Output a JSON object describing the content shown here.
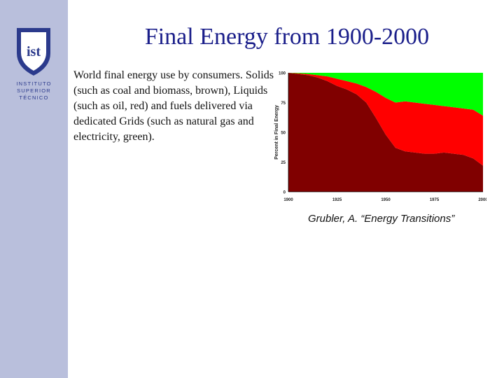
{
  "slide": {
    "title": "Final Energy from 1900-2000",
    "description": "World final energy use by consumers. Solids (such as coal and biomass, brown), Liquids (such as oil, red) and fuels delivered via dedicated Grids (such as natural gas and electricity, green).",
    "citation": "Grubler, A. “Energy Transitions”"
  },
  "logo": {
    "lines": [
      "INSTITUTO",
      "SUPERIOR",
      "TÉCNICO"
    ],
    "monogram": "ist"
  },
  "colors": {
    "sidebar": "#b9bfdc",
    "title": "#1a1e8a",
    "solids": "#800000",
    "liquids": "#ff0000",
    "grids": "#00ff00"
  },
  "chart_data": {
    "type": "area",
    "stacked": true,
    "ylabel": "Percent in Final Energy",
    "xlim": [
      1900,
      2000
    ],
    "ylim": [
      0,
      100
    ],
    "x_ticks": [
      "1900",
      "1925",
      "1950",
      "1975",
      "2000"
    ],
    "y_ticks": [
      "0",
      "25",
      "50",
      "75",
      "100"
    ],
    "x": [
      1900,
      1905,
      1910,
      1915,
      1920,
      1925,
      1930,
      1935,
      1940,
      1945,
      1950,
      1955,
      1960,
      1965,
      1970,
      1975,
      1980,
      1985,
      1990,
      1995,
      2000
    ],
    "series": [
      {
        "key": "solids",
        "values": [
          100,
          99,
          98,
          96,
          93,
          89,
          86,
          82,
          75,
          62,
          48,
          37,
          34,
          33,
          32,
          32,
          33,
          32,
          31,
          28,
          22
        ]
      },
      {
        "key": "liquids",
        "values": [
          0,
          0.5,
          1,
          2,
          4,
          6,
          7,
          9,
          13,
          22,
          31,
          38,
          42,
          42,
          42,
          41,
          39,
          39,
          39,
          41,
          42
        ]
      },
      {
        "key": "grids",
        "values": [
          0,
          0.5,
          1,
          2,
          3,
          5,
          7,
          9,
          12,
          16,
          21,
          25,
          24,
          25,
          26,
          27,
          28,
          29,
          30,
          31,
          36
        ]
      }
    ]
  }
}
